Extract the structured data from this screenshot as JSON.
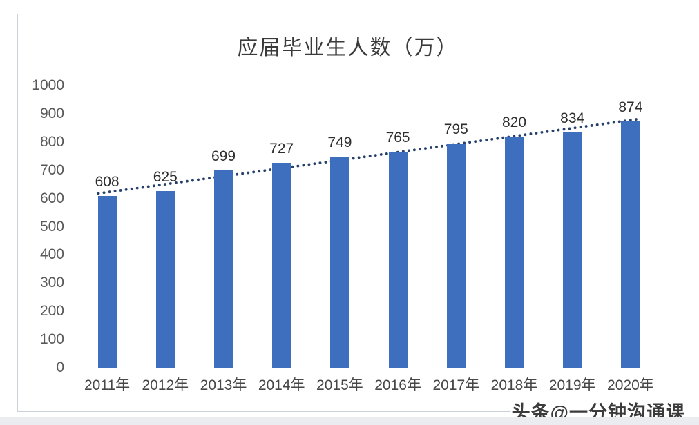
{
  "watermark": "头条@一分钟沟通课",
  "chart_data": {
    "type": "bar",
    "title": "应届毕业生人数（万）",
    "categories": [
      "2011年",
      "2012年",
      "2013年",
      "2014年",
      "2015年",
      "2016年",
      "2017年",
      "2018年",
      "2019年",
      "2020年"
    ],
    "values": [
      608,
      625,
      699,
      727,
      749,
      765,
      795,
      820,
      834,
      874
    ],
    "xlabel": "",
    "ylabel": "",
    "ylim": [
      0,
      1000
    ],
    "ytick_step": 100,
    "yticks": [
      0,
      100,
      200,
      300,
      400,
      500,
      600,
      700,
      800,
      900,
      1000
    ],
    "grid": false,
    "legend": false,
    "data_labels_shown": true,
    "trendline": {
      "type": "linear",
      "style": "dotted"
    },
    "colors": {
      "bar": "#3d6fbe",
      "trendline": "#26406b",
      "axis_line": "#b0b0b0",
      "tick_text": "#595959",
      "data_label_text": "#2e2e2e",
      "title_text": "#3a3a3a"
    }
  }
}
